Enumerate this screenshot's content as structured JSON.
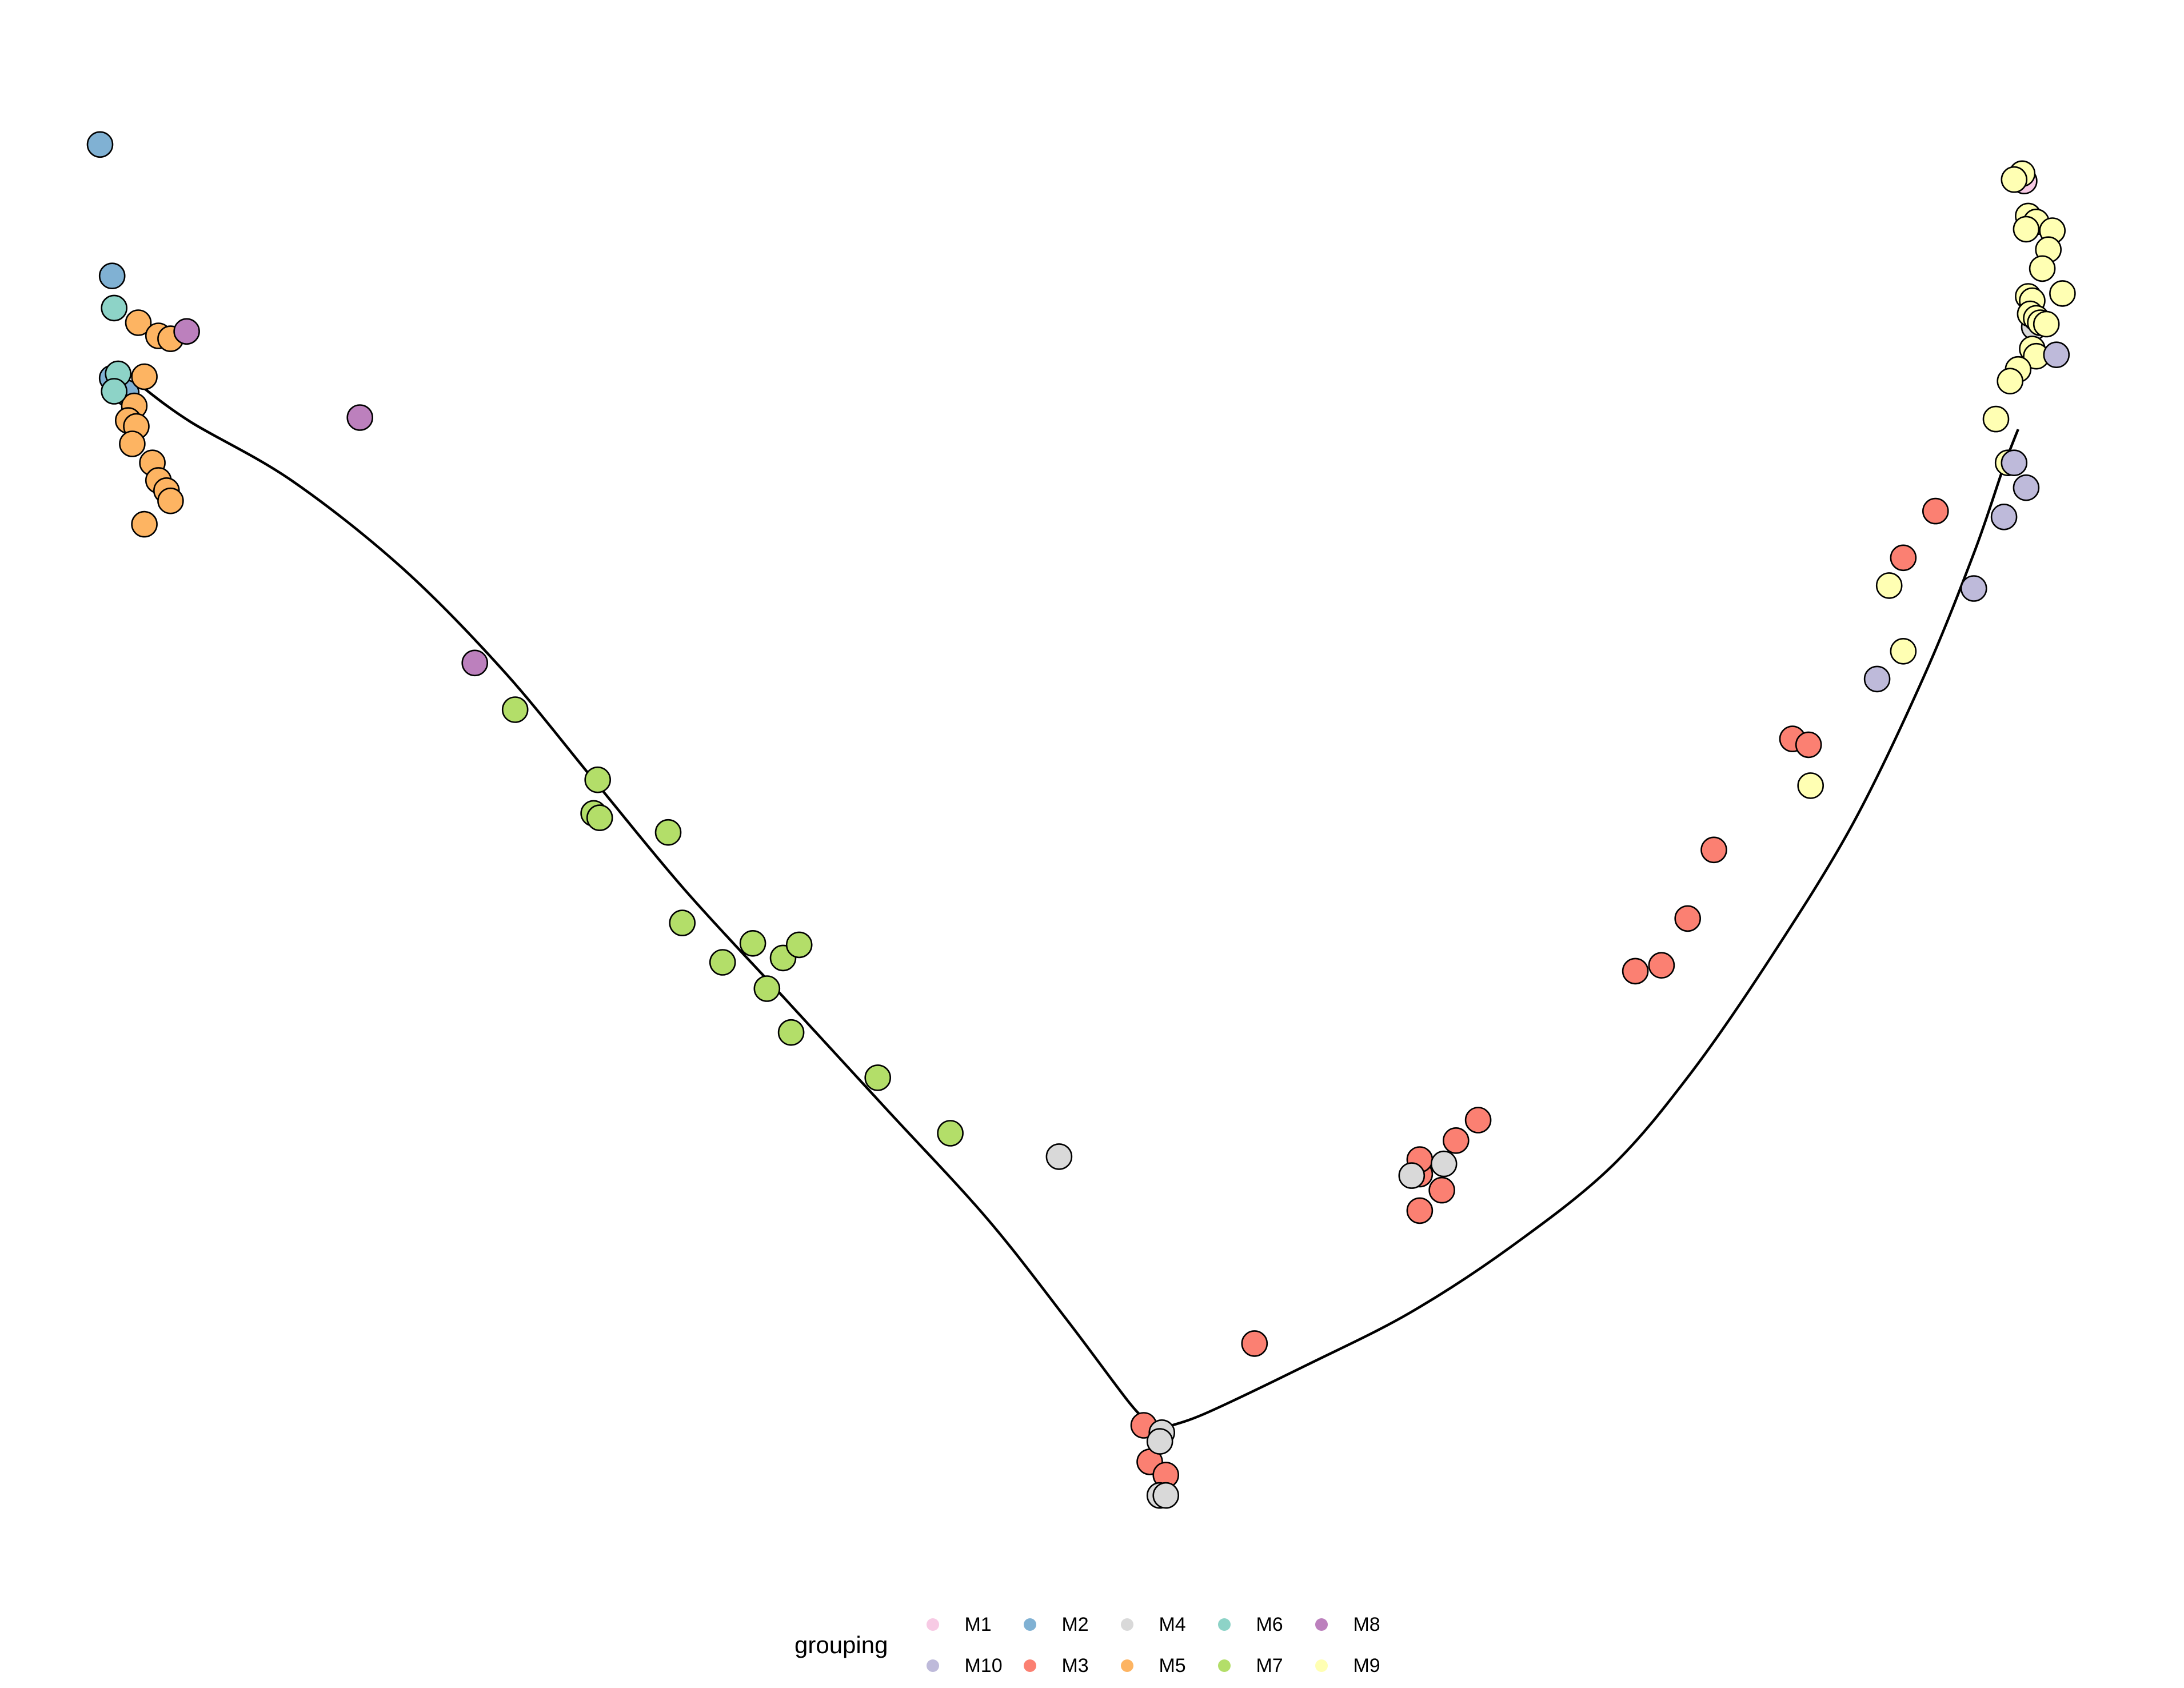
{
  "chart_data": {
    "type": "scatter",
    "title": "",
    "xlabel": "",
    "ylabel": "",
    "axes_visible": false,
    "grid": false,
    "xlim": [
      0,
      100
    ],
    "ylim": [
      0,
      100
    ],
    "legend": {
      "title": "grouping",
      "placement": "bottom",
      "entries": [
        {
          "label": "M1",
          "color": "#F7CAE4"
        },
        {
          "label": "M10",
          "color": "#BEBADA"
        },
        {
          "label": "M2",
          "color": "#80B1D3"
        },
        {
          "label": "M3",
          "color": "#FB8072"
        },
        {
          "label": "M4",
          "color": "#D9D9D9"
        },
        {
          "label": "M5",
          "color": "#FDB462"
        },
        {
          "label": "M6",
          "color": "#8DD3C7"
        },
        {
          "label": "M7",
          "color": "#B3DE69"
        },
        {
          "label": "M8",
          "color": "#BC80BD"
        },
        {
          "label": "M9",
          "color": "#FFFFB3"
        }
      ]
    },
    "trajectory": [
      [
        2.0,
        78.5
      ],
      [
        4.5,
        76.0
      ],
      [
        9.5,
        72.0
      ],
      [
        15.0,
        66.0
      ],
      [
        20.0,
        59.0
      ],
      [
        24.5,
        51.5
      ],
      [
        29.0,
        44.0
      ],
      [
        34.0,
        36.5
      ],
      [
        39.0,
        29.0
      ],
      [
        44.0,
        21.5
      ],
      [
        48.0,
        14.5
      ],
      [
        51.0,
        9.0
      ],
      [
        52.0,
        7.5
      ],
      [
        52.3,
        6.8
      ],
      [
        53.0,
        7.2
      ],
      [
        55.0,
        8.2
      ],
      [
        60.0,
        11.5
      ],
      [
        65.0,
        15.0
      ],
      [
        70.0,
        19.5
      ],
      [
        75.0,
        25.0
      ],
      [
        79.0,
        31.5
      ],
      [
        83.0,
        39.5
      ],
      [
        87.0,
        48.5
      ],
      [
        90.5,
        58.5
      ],
      [
        93.0,
        67.0
      ],
      [
        94.5,
        73.0
      ],
      [
        95.2,
        75.5
      ]
    ],
    "series": [
      {
        "name": "M1",
        "points": [
          [
            95.5,
            92.5
          ]
        ]
      },
      {
        "name": "M2",
        "points": [
          [
            0.0,
            95.0
          ],
          [
            0.6,
            86.0
          ],
          [
            0.6,
            79.0
          ],
          [
            1.3,
            78.0
          ]
        ]
      },
      {
        "name": "M3",
        "points": [
          [
            51.8,
            7.3
          ],
          [
            52.1,
            4.8
          ],
          [
            52.9,
            3.9
          ],
          [
            57.3,
            12.9
          ],
          [
            65.5,
            22.0
          ],
          [
            66.6,
            23.4
          ],
          [
            65.5,
            24.5
          ],
          [
            65.5,
            25.5
          ],
          [
            67.3,
            26.8
          ],
          [
            68.4,
            28.2
          ],
          [
            76.2,
            38.4
          ],
          [
            77.5,
            38.8
          ],
          [
            78.8,
            42.0
          ],
          [
            80.1,
            46.7
          ],
          [
            84.0,
            54.3
          ],
          [
            84.8,
            53.9
          ],
          [
            89.5,
            66.7
          ],
          [
            91.1,
            69.9
          ]
        ]
      },
      {
        "name": "M4",
        "points": [
          [
            47.6,
            25.7
          ],
          [
            52.7,
            6.8
          ],
          [
            52.6,
            6.2
          ],
          [
            52.6,
            2.5
          ],
          [
            52.9,
            2.5
          ],
          [
            65.1,
            24.4
          ],
          [
            66.7,
            25.2
          ],
          [
            96.0,
            82.5
          ]
        ]
      },
      {
        "name": "M5",
        "points": [
          [
            1.9,
            82.8
          ],
          [
            2.9,
            81.9
          ],
          [
            3.5,
            81.7
          ],
          [
            2.2,
            79.1
          ],
          [
            1.7,
            77.1
          ],
          [
            1.4,
            76.1
          ],
          [
            1.8,
            75.7
          ],
          [
            1.6,
            74.5
          ],
          [
            2.6,
            73.2
          ],
          [
            2.9,
            72.0
          ],
          [
            3.3,
            71.3
          ],
          [
            3.5,
            70.6
          ],
          [
            2.2,
            69.0
          ]
        ]
      },
      {
        "name": "M6",
        "points": [
          [
            0.7,
            83.8
          ],
          [
            0.9,
            79.3
          ],
          [
            0.7,
            78.1
          ]
        ]
      },
      {
        "name": "M7",
        "points": [
          [
            20.6,
            56.3
          ],
          [
            24.7,
            51.5
          ],
          [
            24.5,
            49.2
          ],
          [
            24.8,
            48.9
          ],
          [
            28.2,
            47.9
          ],
          [
            28.9,
            41.7
          ],
          [
            30.9,
            39.0
          ],
          [
            32.4,
            40.3
          ],
          [
            33.9,
            39.3
          ],
          [
            34.7,
            40.2
          ],
          [
            33.1,
            37.2
          ],
          [
            34.3,
            34.2
          ],
          [
            38.6,
            31.1
          ],
          [
            42.2,
            27.3
          ]
        ]
      },
      {
        "name": "M8",
        "points": [
          [
            4.3,
            82.2
          ],
          [
            12.9,
            76.3
          ],
          [
            18.6,
            59.5
          ]
        ]
      },
      {
        "name": "M9",
        "points": [
          [
            95.4,
            93.0
          ],
          [
            95.0,
            92.6
          ],
          [
            95.7,
            90.1
          ],
          [
            96.1,
            89.7
          ],
          [
            96.9,
            89.1
          ],
          [
            95.6,
            89.2
          ],
          [
            96.7,
            87.8
          ],
          [
            96.4,
            86.5
          ],
          [
            97.4,
            84.8
          ],
          [
            95.7,
            84.6
          ],
          [
            95.9,
            84.3
          ],
          [
            95.8,
            83.4
          ],
          [
            96.1,
            83.1
          ],
          [
            96.3,
            82.8
          ],
          [
            96.6,
            82.7
          ],
          [
            95.9,
            81.0
          ],
          [
            96.1,
            80.5
          ],
          [
            95.2,
            79.6
          ],
          [
            94.8,
            78.8
          ],
          [
            94.1,
            76.2
          ],
          [
            94.7,
            73.2
          ],
          [
            88.8,
            64.8
          ],
          [
            89.5,
            60.3
          ],
          [
            84.9,
            51.1
          ]
        ]
      },
      {
        "name": "M10",
        "points": [
          [
            97.1,
            80.6
          ],
          [
            95.0,
            73.2
          ],
          [
            95.6,
            71.5
          ],
          [
            94.5,
            69.5
          ],
          [
            93.0,
            64.6
          ],
          [
            88.2,
            58.4
          ]
        ]
      }
    ]
  }
}
